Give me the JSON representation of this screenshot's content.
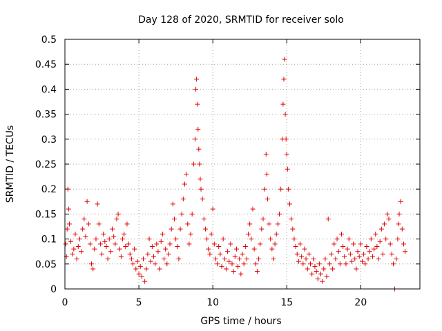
{
  "chart_data": {
    "type": "scatter",
    "title": "Day 128 of 2020, SRMTID for receiver solo",
    "xlabel": "GPS time / hours",
    "ylabel": "SRMTID / TECUs",
    "xlim": [
      0,
      24
    ],
    "ylim": [
      0,
      0.5
    ],
    "x_ticks": [
      0,
      5,
      10,
      15,
      20
    ],
    "x_tick_labels": [
      "0",
      "5",
      "10",
      "15",
      "20"
    ],
    "y_ticks": [
      0,
      0.05,
      0.1,
      0.15,
      0.2,
      0.25,
      0.3,
      0.35,
      0.4,
      0.45,
      0.5
    ],
    "y_tick_labels": [
      "0",
      "0.05",
      "0.1",
      "0.15",
      "0.2",
      "0.25",
      "0.3",
      "0.35",
      "0.4",
      "0.45",
      "0.5"
    ],
    "grid": true,
    "marker": "plus",
    "series": [
      {
        "name": "SRMTID",
        "color": "#e00000",
        "points": [
          [
            0.05,
            0.09
          ],
          [
            0.1,
            0.065
          ],
          [
            0.15,
            0.12
          ],
          [
            0.2,
            0.2
          ],
          [
            0.25,
            0.16
          ],
          [
            0.3,
            0.13
          ],
          [
            0.4,
            0.095
          ],
          [
            0.5,
            0.07
          ],
          [
            0.6,
            0.08
          ],
          [
            0.7,
            0.11
          ],
          [
            0.8,
            0.06
          ],
          [
            0.9,
            0.085
          ],
          [
            1.0,
            0.1
          ],
          [
            1.1,
            0.075
          ],
          [
            1.2,
            0.12
          ],
          [
            1.3,
            0.14
          ],
          [
            1.4,
            0.105
          ],
          [
            1.5,
            0.175
          ],
          [
            1.6,
            0.13
          ],
          [
            1.7,
            0.09
          ],
          [
            1.8,
            0.05
          ],
          [
            1.9,
            0.04
          ],
          [
            2.0,
            0.08
          ],
          [
            2.1,
            0.1
          ],
          [
            2.2,
            0.17
          ],
          [
            2.3,
            0.13
          ],
          [
            2.4,
            0.09
          ],
          [
            2.5,
            0.07
          ],
          [
            2.6,
            0.11
          ],
          [
            2.7,
            0.095
          ],
          [
            2.8,
            0.085
          ],
          [
            2.9,
            0.06
          ],
          [
            3.0,
            0.1
          ],
          [
            3.1,
            0.075
          ],
          [
            3.2,
            0.12
          ],
          [
            3.3,
            0.105
          ],
          [
            3.4,
            0.09
          ],
          [
            3.5,
            0.14
          ],
          [
            3.6,
            0.15
          ],
          [
            3.7,
            0.08
          ],
          [
            3.8,
            0.065
          ],
          [
            3.9,
            0.1
          ],
          [
            4.0,
            0.11
          ],
          [
            4.1,
            0.085
          ],
          [
            4.2,
            0.13
          ],
          [
            4.3,
            0.09
          ],
          [
            4.4,
            0.07
          ],
          [
            4.5,
            0.06
          ],
          [
            4.6,
            0.05
          ],
          [
            4.7,
            0.08
          ],
          [
            4.8,
            0.04
          ],
          [
            4.9,
            0.055
          ],
          [
            5.0,
            0.03
          ],
          [
            5.1,
            0.045
          ],
          [
            5.2,
            0.025
          ],
          [
            5.3,
            0.06
          ],
          [
            5.4,
            0.015
          ],
          [
            5.5,
            0.04
          ],
          [
            5.6,
            0.07
          ],
          [
            5.7,
            0.1
          ],
          [
            5.8,
            0.055
          ],
          [
            5.9,
            0.085
          ],
          [
            6.0,
            0.065
          ],
          [
            6.1,
            0.05
          ],
          [
            6.2,
            0.09
          ],
          [
            6.3,
            0.075
          ],
          [
            6.4,
            0.04
          ],
          [
            6.5,
            0.095
          ],
          [
            6.6,
            0.11
          ],
          [
            6.7,
            0.06
          ],
          [
            6.8,
            0.08
          ],
          [
            6.9,
            0.05
          ],
          [
            7.0,
            0.07
          ],
          [
            7.1,
            0.09
          ],
          [
            7.2,
            0.12
          ],
          [
            7.3,
            0.17
          ],
          [
            7.4,
            0.14
          ],
          [
            7.5,
            0.1
          ],
          [
            7.6,
            0.085
          ],
          [
            7.7,
            0.06
          ],
          [
            7.8,
            0.12
          ],
          [
            7.9,
            0.15
          ],
          [
            8.0,
            0.18
          ],
          [
            8.1,
            0.21
          ],
          [
            8.2,
            0.23
          ],
          [
            8.3,
            0.13
          ],
          [
            8.4,
            0.09
          ],
          [
            8.5,
            0.11
          ],
          [
            8.6,
            0.15
          ],
          [
            8.7,
            0.25
          ],
          [
            8.8,
            0.3
          ],
          [
            8.85,
            0.4
          ],
          [
            8.9,
            0.42
          ],
          [
            8.95,
            0.37
          ],
          [
            9.0,
            0.32
          ],
          [
            9.05,
            0.28
          ],
          [
            9.1,
            0.25
          ],
          [
            9.15,
            0.22
          ],
          [
            9.2,
            0.2
          ],
          [
            9.3,
            0.18
          ],
          [
            9.4,
            0.14
          ],
          [
            9.5,
            0.12
          ],
          [
            9.6,
            0.1
          ],
          [
            9.7,
            0.08
          ],
          [
            9.8,
            0.07
          ],
          [
            9.9,
            0.11
          ],
          [
            10.0,
            0.16
          ],
          [
            10.1,
            0.09
          ],
          [
            10.2,
            0.06
          ],
          [
            10.3,
            0.05
          ],
          [
            10.4,
            0.085
          ],
          [
            10.5,
            0.07
          ],
          [
            10.6,
            0.045
          ],
          [
            10.7,
            0.1
          ],
          [
            10.8,
            0.06
          ],
          [
            10.9,
            0.04
          ],
          [
            11.0,
            0.075
          ],
          [
            11.1,
            0.055
          ],
          [
            11.2,
            0.09
          ],
          [
            11.3,
            0.05
          ],
          [
            11.4,
            0.035
          ],
          [
            11.5,
            0.065
          ],
          [
            11.6,
            0.08
          ],
          [
            11.7,
            0.045
          ],
          [
            11.8,
            0.06
          ],
          [
            11.9,
            0.03
          ],
          [
            12.0,
            0.07
          ],
          [
            12.1,
            0.05
          ],
          [
            12.2,
            0.085
          ],
          [
            12.3,
            0.06
          ],
          [
            12.4,
            0.11
          ],
          [
            12.5,
            0.13
          ],
          [
            12.6,
            0.1
          ],
          [
            12.7,
            0.16
          ],
          [
            12.8,
            0.08
          ],
          [
            12.9,
            0.05
          ],
          [
            13.0,
            0.035
          ],
          [
            13.1,
            0.06
          ],
          [
            13.2,
            0.09
          ],
          [
            13.3,
            0.12
          ],
          [
            13.4,
            0.14
          ],
          [
            13.5,
            0.2
          ],
          [
            13.6,
            0.27
          ],
          [
            13.65,
            0.23
          ],
          [
            13.7,
            0.18
          ],
          [
            13.8,
            0.13
          ],
          [
            13.9,
            0.1
          ],
          [
            14.0,
            0.08
          ],
          [
            14.1,
            0.06
          ],
          [
            14.2,
            0.09
          ],
          [
            14.3,
            0.11
          ],
          [
            14.4,
            0.13
          ],
          [
            14.5,
            0.15
          ],
          [
            14.6,
            0.2
          ],
          [
            14.7,
            0.3
          ],
          [
            14.75,
            0.37
          ],
          [
            14.8,
            0.42
          ],
          [
            14.85,
            0.46
          ],
          [
            14.9,
            0.35
          ],
          [
            14.95,
            0.3
          ],
          [
            15.0,
            0.27
          ],
          [
            15.05,
            0.24
          ],
          [
            15.1,
            0.2
          ],
          [
            15.2,
            0.17
          ],
          [
            15.3,
            0.14
          ],
          [
            15.4,
            0.12
          ],
          [
            15.5,
            0.1
          ],
          [
            15.6,
            0.085
          ],
          [
            15.7,
            0.07
          ],
          [
            15.8,
            0.055
          ],
          [
            15.9,
            0.09
          ],
          [
            16.0,
            0.065
          ],
          [
            16.1,
            0.05
          ],
          [
            16.2,
            0.08
          ],
          [
            16.3,
            0.06
          ],
          [
            16.4,
            0.04
          ],
          [
            16.5,
            0.07
          ],
          [
            16.6,
            0.05
          ],
          [
            16.7,
            0.03
          ],
          [
            16.8,
            0.06
          ],
          [
            16.9,
            0.045
          ],
          [
            17.0,
            0.035
          ],
          [
            17.1,
            0.02
          ],
          [
            17.2,
            0.05
          ],
          [
            17.3,
            0.03
          ],
          [
            17.4,
            0.015
          ],
          [
            17.5,
            0.04
          ],
          [
            17.6,
            0.06
          ],
          [
            17.7,
            0.025
          ],
          [
            17.8,
            0.14
          ],
          [
            17.9,
            0.05
          ],
          [
            18.0,
            0.07
          ],
          [
            18.1,
            0.04
          ],
          [
            18.2,
            0.09
          ],
          [
            18.3,
            0.06
          ],
          [
            18.4,
            0.1
          ],
          [
            18.5,
            0.075
          ],
          [
            18.6,
            0.05
          ],
          [
            18.7,
            0.11
          ],
          [
            18.8,
            0.085
          ],
          [
            18.9,
            0.065
          ],
          [
            19.0,
            0.05
          ],
          [
            19.1,
            0.08
          ],
          [
            19.2,
            0.1
          ],
          [
            19.3,
            0.07
          ],
          [
            19.4,
            0.055
          ],
          [
            19.5,
            0.09
          ],
          [
            19.6,
            0.06
          ],
          [
            19.7,
            0.04
          ],
          [
            19.8,
            0.075
          ],
          [
            19.9,
            0.065
          ],
          [
            20.0,
            0.09
          ],
          [
            20.1,
            0.055
          ],
          [
            20.2,
            0.07
          ],
          [
            20.3,
            0.05
          ],
          [
            20.4,
            0.085
          ],
          [
            20.5,
            0.06
          ],
          [
            20.6,
            0.075
          ],
          [
            20.7,
            0.1
          ],
          [
            20.8,
            0.065
          ],
          [
            20.9,
            0.08
          ],
          [
            21.0,
            0.11
          ],
          [
            21.1,
            0.085
          ],
          [
            21.2,
            0.06
          ],
          [
            21.3,
            0.095
          ],
          [
            21.4,
            0.12
          ],
          [
            21.5,
            0.07
          ],
          [
            21.6,
            0.13
          ],
          [
            21.7,
            0.1
          ],
          [
            21.8,
            0.15
          ],
          [
            21.9,
            0.14
          ],
          [
            22.0,
            0.09
          ],
          [
            22.1,
            0.07
          ],
          [
            22.2,
            0.05
          ],
          [
            22.3,
            0.0
          ],
          [
            22.4,
            0.06
          ],
          [
            22.5,
            0.1
          ],
          [
            22.55,
            0.13
          ],
          [
            22.6,
            0.15
          ],
          [
            22.7,
            0.175
          ],
          [
            22.8,
            0.12
          ],
          [
            22.9,
            0.09
          ],
          [
            23.0,
            0.075
          ]
        ]
      }
    ]
  }
}
